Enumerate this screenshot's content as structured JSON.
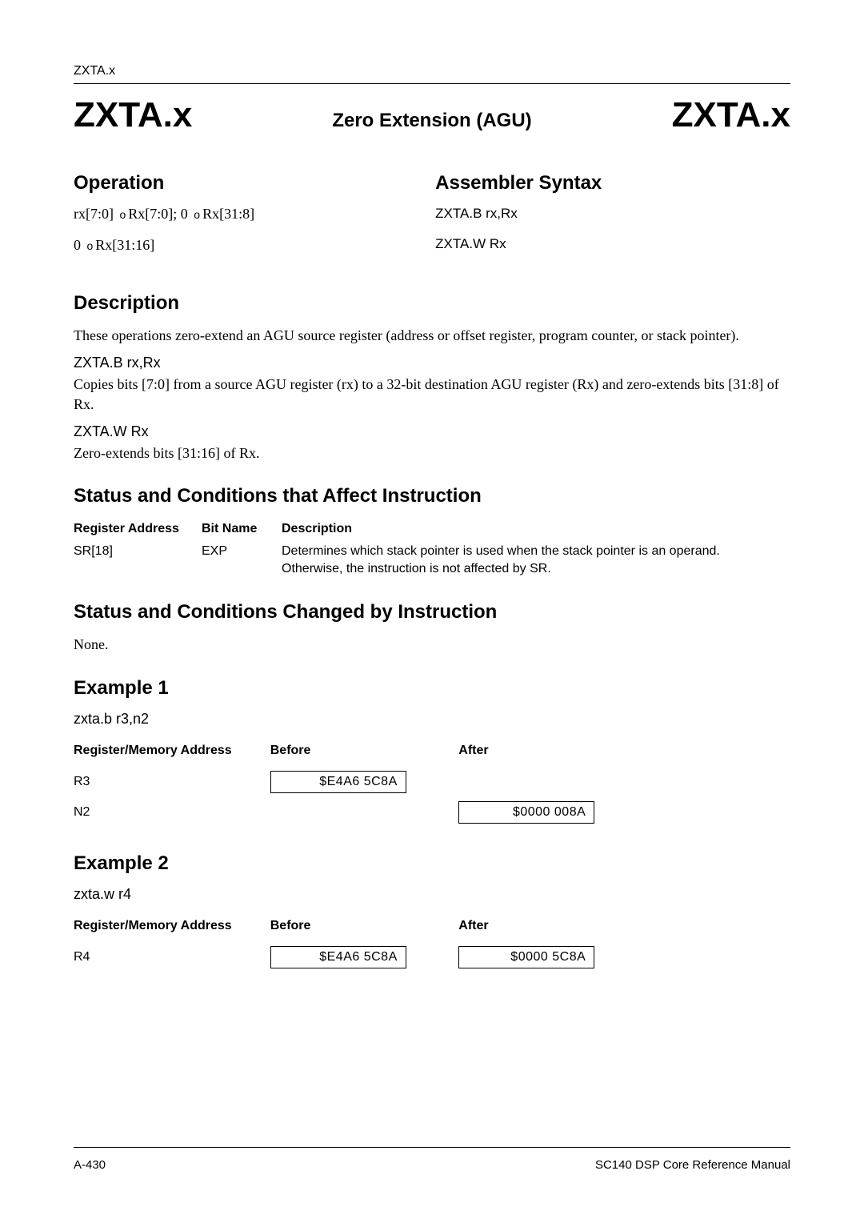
{
  "header": {
    "small": "ZXTA.x"
  },
  "title": {
    "left": "ZXTA.x",
    "mid": "Zero Extension (AGU)",
    "right": "ZXTA.x"
  },
  "operation": {
    "heading": "Operation",
    "line1_a": "rx[7:0]",
    "line1_b": "Rx[7:0]; 0",
    "line1_c": "Rx[31:8]",
    "line2_a": "0",
    "line2_b": "Rx[31:16]",
    "arrow": "o"
  },
  "assembler": {
    "heading": "Assembler Syntax",
    "line1": "ZXTA.B rx,Rx",
    "line2": "ZXTA.W Rx"
  },
  "description": {
    "heading": "Description",
    "para1": "These operations zero-extend an AGU source register (address or offset register, program counter, or stack pointer).",
    "sub1_h": "ZXTA.B  rx,Rx",
    "sub1_p": "Copies bits [7:0] from a source AGU register (rx) to a 32-bit destination AGU register (Rx) and zero-extends bits [31:8] of Rx.",
    "sub2_h": "ZXTA.W  Rx",
    "sub2_p": "Zero-extends bits [31:16] of Rx."
  },
  "status_affect": {
    "heading": "Status and Conditions that Affect Instruction",
    "cols": {
      "c1": "Register Address",
      "c2": "Bit Name",
      "c3": "Description"
    },
    "rows": [
      {
        "reg": "SR[18]",
        "bit": "EXP",
        "desc": "Determines which stack pointer is used when the stack pointer is an operand. Otherwise, the instruction is not affected by SR."
      }
    ]
  },
  "status_changed": {
    "heading": "Status and Conditions Changed by Instruction",
    "text": "None."
  },
  "example1": {
    "heading": "Example 1",
    "code": "zxta.b  r3,n2",
    "cols": {
      "c1": "Register/Memory Address",
      "c2": "Before",
      "c3": "After"
    },
    "rows": [
      {
        "label": "R3",
        "before": "$E4A6 5C8A",
        "after": ""
      },
      {
        "label": "N2",
        "before": "",
        "after": "$0000  008A"
      }
    ]
  },
  "example2": {
    "heading": "Example 2",
    "code": "zxta.w r4",
    "cols": {
      "c1": "Register/Memory Address",
      "c2": "Before",
      "c3": "After"
    },
    "rows": [
      {
        "label": "R4",
        "before": "$E4A6 5C8A",
        "after": "$0000  5C8A"
      }
    ]
  },
  "footer": {
    "left": "A-430",
    "right": "SC140 DSP Core Reference Manual"
  }
}
